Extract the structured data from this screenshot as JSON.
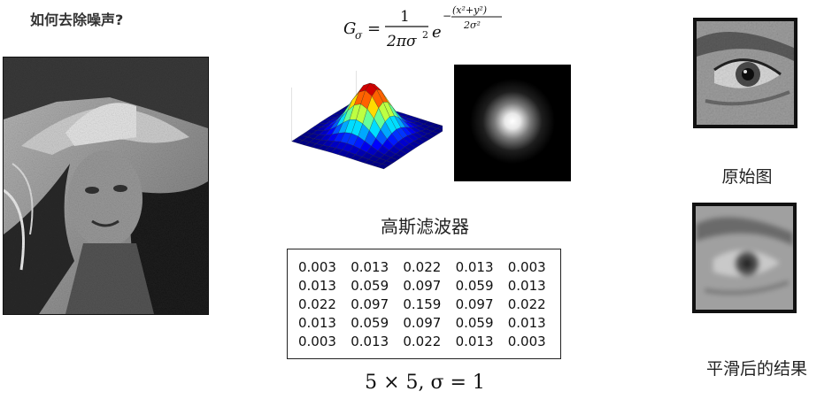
{
  "title": "如何去除噪声?",
  "formula": {
    "lhs": "G",
    "lhs_sub": "σ",
    "numerator": "1",
    "denominator": "2πσ",
    "denominator_sup": "2",
    "base": "e",
    "exp_numerator": "(x²+y²)",
    "exp_denominator": "2σ²"
  },
  "filter_name": "高斯滤波器",
  "kernel": {
    "rows": [
      [
        "0.003",
        "0.013",
        "0.022",
        "0.013",
        "0.003"
      ],
      [
        "0.013",
        "0.059",
        "0.097",
        "0.059",
        "0.013"
      ],
      [
        "0.022",
        "0.097",
        "0.159",
        "0.097",
        "0.022"
      ],
      [
        "0.013",
        "0.059",
        "0.097",
        "0.059",
        "0.013"
      ],
      [
        "0.003",
        "0.013",
        "0.022",
        "0.013",
        "0.003"
      ]
    ]
  },
  "kernel_size_label": "5 × 5, σ = 1",
  "captions": {
    "original": "原始图",
    "smoothed": "平滑后的结果"
  }
}
